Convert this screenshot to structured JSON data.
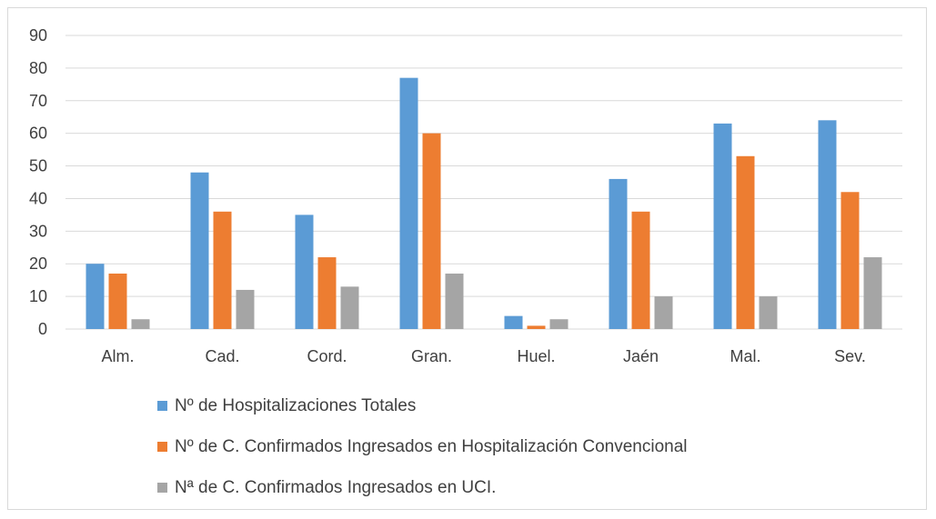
{
  "chart_data": {
    "type": "bar",
    "title": "",
    "xlabel": "",
    "ylabel": "",
    "ylim": [
      0,
      90
    ],
    "yticks": [
      0,
      10,
      20,
      30,
      40,
      50,
      60,
      70,
      80,
      90
    ],
    "grid": true,
    "legend_position": "bottom",
    "categories": [
      "Alm.",
      "Cad.",
      "Cord.",
      "Gran.",
      "Huel.",
      "Jaén",
      "Mal.",
      "Sev."
    ],
    "series": [
      {
        "name": "Nº de Hospitalizaciones Totales",
        "color": "#5b9bd5",
        "values": [
          20,
          48,
          35,
          77,
          4,
          46,
          63,
          64
        ]
      },
      {
        "name": "Nº de C. Confirmados Ingresados en Hospitalización Convencional",
        "color": "#ed7d31",
        "values": [
          17,
          36,
          22,
          60,
          1,
          36,
          53,
          42
        ]
      },
      {
        "name": "Nª de C. Confirmados Ingresados en UCI.",
        "color": "#a5a5a5",
        "values": [
          3,
          12,
          13,
          17,
          3,
          10,
          10,
          22
        ]
      }
    ]
  }
}
